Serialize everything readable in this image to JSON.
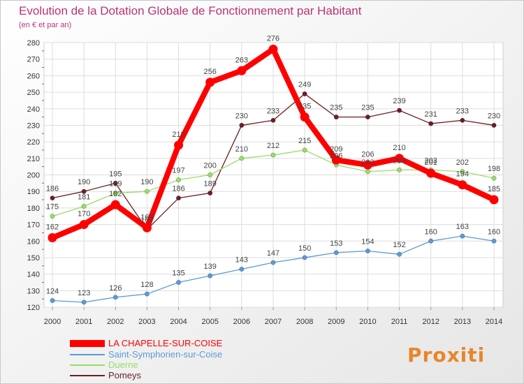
{
  "chart_data": {
    "type": "line",
    "title": "Evolution de la Dotation Globale de Fonctionnement par Habitant",
    "subtitle": "(en € et par an)",
    "x": [
      "2000",
      "2001",
      "2002",
      "2003",
      "2004",
      "2005",
      "2006",
      "2007",
      "2008",
      "2009",
      "2010",
      "2011",
      "2012",
      "2013",
      "2014"
    ],
    "ylim": [
      120,
      280
    ],
    "yticks": [
      120,
      130,
      140,
      150,
      160,
      170,
      180,
      190,
      200,
      210,
      220,
      230,
      240,
      250,
      260,
      270,
      280
    ],
    "grid": true,
    "legend_position": "bottom-left",
    "series": [
      {
        "name": "LA CHAPELLE-SUR-COISE",
        "color": "#ff0000",
        "values": [
          162,
          170,
          182,
          168,
          218,
          256,
          263,
          276,
          235,
          209,
          206,
          210,
          201,
          194,
          185
        ]
      },
      {
        "name": "Saint-Symphorien-sur-Coise",
        "color": "#5b9bd5",
        "values": [
          124,
          123,
          126,
          128,
          135,
          139,
          143,
          147,
          150,
          153,
          154,
          152,
          160,
          163,
          160
        ]
      },
      {
        "name": "Duerne",
        "color": "#99dd66",
        "values": [
          175,
          181,
          189,
          190,
          197,
          200,
          210,
          212,
          215,
          206,
          202,
          203,
          203,
          202,
          198
        ]
      },
      {
        "name": "Pomeys",
        "color": "#6b1f24",
        "values": [
          186,
          190,
          195,
          167,
          186,
          189,
          230,
          233,
          249,
          235,
          235,
          239,
          231,
          233,
          230
        ]
      }
    ],
    "logo_text": "Proxiti"
  }
}
